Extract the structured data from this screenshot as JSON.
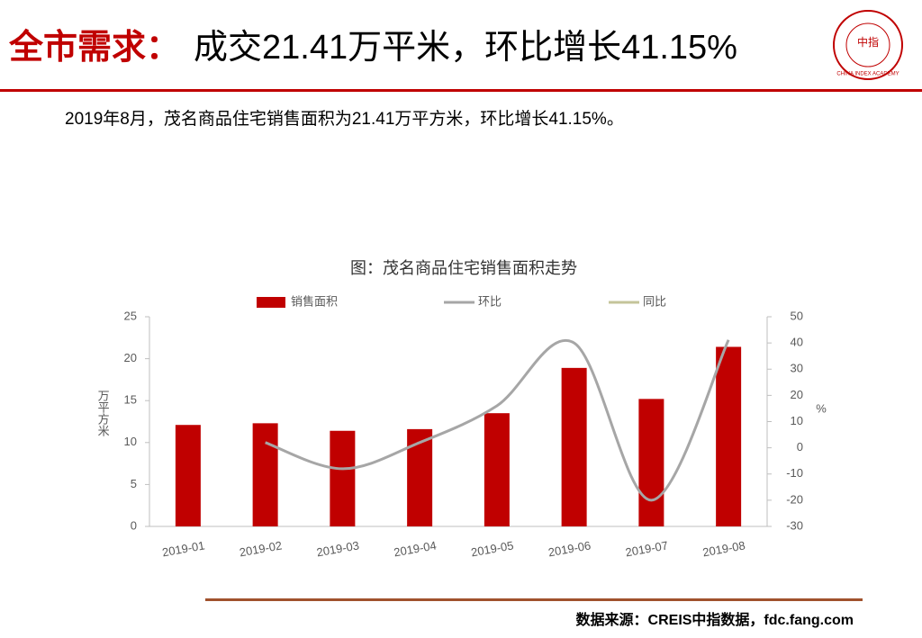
{
  "header": {
    "title_lead": "全市需求：",
    "title_rest": "成交21.41万平米，环比增长41.15%",
    "summary": "2019年8月，茂名商品住宅销售面积为21.41万平方米，环比增长41.15%。",
    "logo_text": "CHINA INDEX ACADEMY",
    "logo_center": "中指"
  },
  "source": "数据来源：CREIS中指数据，fdc.fang.com",
  "chart_data": {
    "type": "bar",
    "title": "图：茂名商品住宅销售面积走势",
    "categories": [
      "2019-01",
      "2019-02",
      "2019-03",
      "2019-04",
      "2019-05",
      "2019-06",
      "2019-07",
      "2019-08"
    ],
    "series": [
      {
        "name": "销售面积",
        "type": "bar",
        "color": "#c00000",
        "values": [
          12.1,
          12.3,
          11.4,
          11.6,
          13.5,
          18.9,
          15.2,
          21.41
        ]
      },
      {
        "name": "环比",
        "type": "line",
        "axis": "y2",
        "color": "#a6a6a6",
        "values": [
          null,
          2,
          -8,
          2,
          16,
          40,
          -20,
          41.15
        ]
      },
      {
        "name": "同比",
        "type": "line",
        "axis": "y2",
        "color": "#c4c49a",
        "values": [
          null,
          null,
          null,
          null,
          null,
          null,
          null,
          null
        ]
      }
    ],
    "ylabel": "万平方米",
    "y2label": "%",
    "ylim": [
      0,
      25
    ],
    "yticks": [
      0,
      5,
      10,
      15,
      20,
      25
    ],
    "y2lim": [
      -30,
      50
    ],
    "y2ticks": [
      -30,
      -20,
      -10,
      0,
      10,
      20,
      30,
      40,
      50
    ],
    "legend": "top",
    "grid": false
  }
}
